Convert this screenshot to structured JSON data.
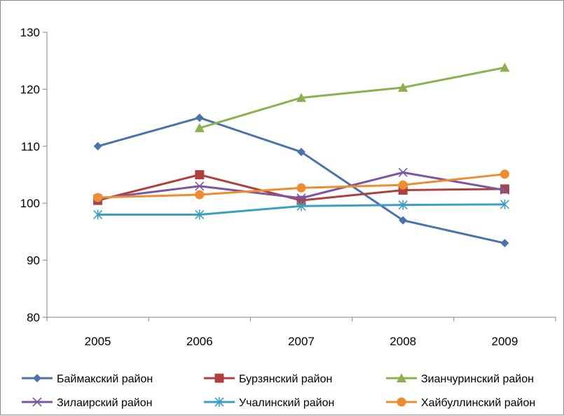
{
  "chart_data": {
    "type": "line",
    "title": "",
    "xlabel": "",
    "ylabel": "",
    "x": [
      "2005",
      "2006",
      "2007",
      "2008",
      "2009"
    ],
    "ylim": [
      80,
      130
    ],
    "yticks": [
      80,
      90,
      100,
      110,
      120,
      130
    ],
    "grid": false,
    "legend_position": "bottom",
    "series": [
      {
        "name": "Баймакский район",
        "color": "#4a72ac",
        "marker": "diamond",
        "values": [
          110,
          115,
          109,
          97,
          93
        ]
      },
      {
        "name": "Бурзянский район",
        "color": "#b0403d",
        "marker": "square",
        "values": [
          100.5,
          105,
          100.5,
          102.3,
          102.5
        ]
      },
      {
        "name": "Зианчуринский район",
        "color": "#8db04e",
        "marker": "triangle",
        "values": [
          null,
          113.2,
          118.5,
          120.3,
          123.8
        ]
      },
      {
        "name": "Зилаирский район",
        "color": "#7a58a0",
        "marker": "x",
        "values": [
          100.8,
          103,
          100.9,
          105.4,
          102.3
        ]
      },
      {
        "name": "Учалинский район",
        "color": "#3d9fbf",
        "marker": "star",
        "values": [
          98,
          98,
          99.5,
          99.7,
          99.8
        ]
      },
      {
        "name": "Хайбуллинский район",
        "color": "#ee8c32",
        "marker": "circle",
        "values": [
          101,
          101.5,
          102.7,
          103.2,
          105.1
        ]
      }
    ]
  }
}
